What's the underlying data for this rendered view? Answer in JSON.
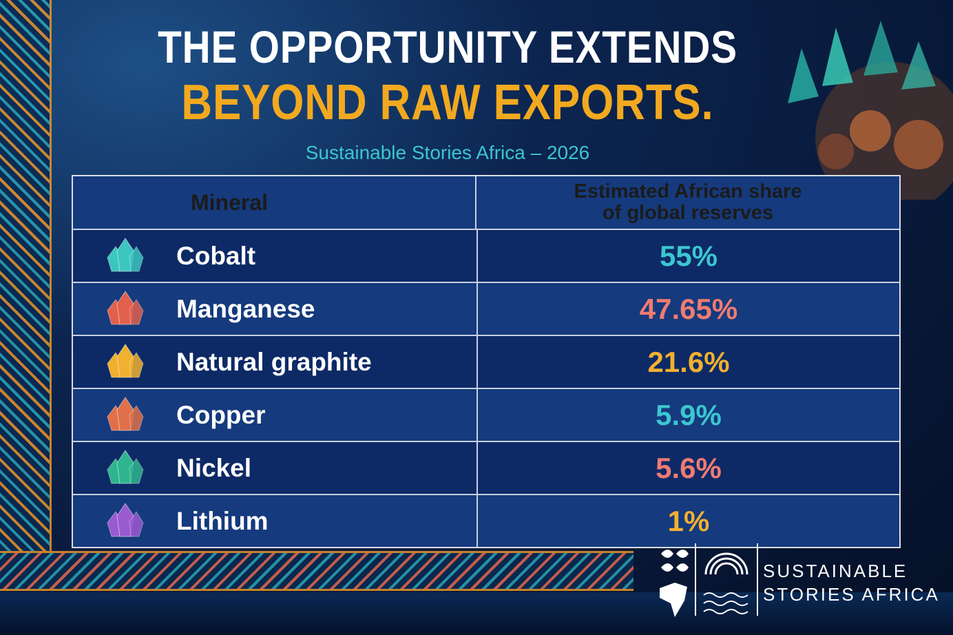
{
  "header": {
    "title_line_1": "THE OPPORTUNITY EXTENDS",
    "title_line_2": "BEYOND RAW EXPORTS.",
    "subtitle": "Sustainable Stories Africa – 2026"
  },
  "table": {
    "columns": [
      "Mineral",
      "Estimated African share of global reserves"
    ],
    "rows": [
      [
        "Cobalt",
        "55%"
      ],
      [
        "Manganese",
        "47.65%"
      ],
      [
        "Natural graphite",
        "21.6%"
      ],
      [
        "Copper",
        "5.9%"
      ],
      [
        "Nickel",
        "5.6%"
      ],
      [
        "Lithium",
        "1%"
      ]
    ]
  },
  "logo": {
    "line_1": "SUSTAINABLE",
    "line_2": "STORIES AFRICA"
  }
}
